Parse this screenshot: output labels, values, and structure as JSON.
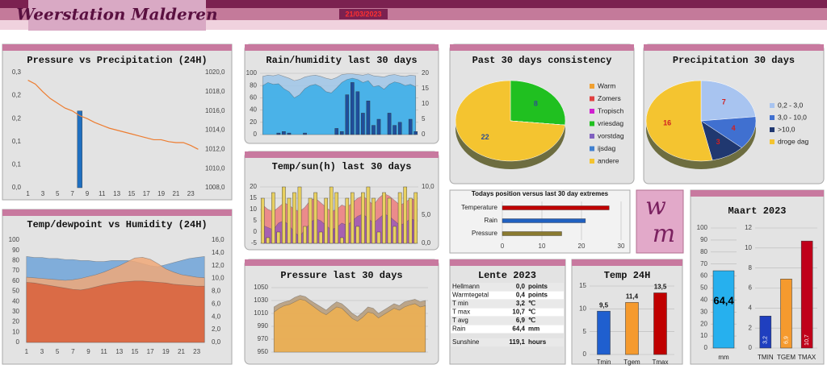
{
  "header": {
    "title": "Weerstation Malderen",
    "date": "21/03/2023"
  },
  "logo": [
    "w",
    "m"
  ],
  "table": {
    "title": "Lente 2023",
    "rows": [
      [
        "Hellmann",
        "0,0",
        "points"
      ],
      [
        "Warmtegetal",
        "0,4",
        "points"
      ],
      [
        "T min",
        "3,2",
        "℃"
      ],
      [
        "T max",
        "10,7",
        "℃"
      ],
      [
        "T avg",
        "6,9",
        "℃"
      ],
      [
        "Rain",
        "64,4",
        "mm"
      ],
      [
        "Sunshine",
        "119,1",
        "hours"
      ]
    ]
  },
  "chart_data": [
    {
      "type": "combo",
      "title": "Pressure vs Precipitation (24H)",
      "categories": [
        1,
        null,
        3,
        null,
        5,
        null,
        7,
        null,
        9,
        null,
        11,
        null,
        13,
        null,
        15,
        null,
        17,
        null,
        19,
        null,
        21,
        null,
        23,
        null
      ],
      "series": [
        {
          "type": "bar",
          "color": "#1f6fc0",
          "values": [
            0,
            0,
            0,
            0,
            0,
            0,
            0,
            0.2,
            0,
            0,
            0,
            0,
            0,
            0,
            0,
            0,
            0,
            0,
            0,
            0,
            0,
            0,
            0,
            0
          ]
        },
        {
          "type": "line",
          "color": "#ed7d31",
          "axis": "y2",
          "values": [
            1019.2,
            1018.8,
            1018,
            1017.3,
            1016.8,
            1016.3,
            1016,
            1015.5,
            1015.2,
            1014.8,
            1014.5,
            1014.2,
            1014,
            1013.8,
            1013.6,
            1013.4,
            1013.2,
            1013,
            1013,
            1012.8,
            1012.7,
            1012.7,
            1012.4,
            1012
          ]
        }
      ],
      "ylim": [
        0,
        0.3
      ],
      "yticks": [
        {
          "value": 0,
          "label": "0,0"
        },
        {
          "value": 0.06,
          "label": "0,1"
        },
        {
          "value": 0.12,
          "label": "0,1"
        },
        {
          "value": 0.18,
          "label": "0,2"
        },
        {
          "value": 0.24,
          "label": "0,2"
        },
        {
          "value": 0.3,
          "label": "0,3"
        }
      ],
      "y2lim": [
        1008,
        1020
      ],
      "y2ticks": [
        {
          "value": 1008,
          "label": "1008,0"
        },
        {
          "value": 1010,
          "label": "1010,0"
        },
        {
          "value": 1012,
          "label": "1012,0"
        },
        {
          "value": 1014,
          "label": "1014,0"
        },
        {
          "value": 1016,
          "label": "1016,0"
        },
        {
          "value": 1018,
          "label": "1018,0"
        },
        {
          "value": 1020,
          "label": "1020,0"
        }
      ],
      "grid": false
    },
    {
      "type": "combo",
      "title": "Temp/dewpoint vs Humidity (24H)",
      "categories": [
        1,
        null,
        3,
        null,
        5,
        null,
        7,
        null,
        9,
        null,
        11,
        null,
        13,
        null,
        15,
        null,
        17,
        null,
        19,
        null,
        21,
        null,
        23,
        null
      ],
      "series": [
        {
          "type": "area",
          "color": "#6fa3d8",
          "values": [
            84,
            83,
            83,
            82,
            82,
            81,
            81,
            80,
            80,
            79,
            79,
            80,
            80,
            80,
            79,
            77,
            75,
            74,
            76,
            78,
            80,
            82,
            83,
            84
          ]
        },
        {
          "type": "area",
          "color": "#f0a878",
          "axis": "y2",
          "values": [
            10.2,
            10.1,
            10,
            9.9,
            9.8,
            9.7,
            9.8,
            10,
            10.3,
            10.6,
            11,
            11.5,
            12,
            12.6,
            13.2,
            13.3,
            13,
            12.3,
            11.5,
            11,
            10.6,
            10.4,
            10.2,
            10.1
          ]
        },
        {
          "type": "area",
          "color": "#d9603b",
          "axis": "y2",
          "values": [
            9.4,
            9.3,
            9.1,
            8.9,
            8.7,
            8.5,
            8.3,
            8.2,
            8.4,
            8.7,
            9,
            9.2,
            9.4,
            9.5,
            9.6,
            9.6,
            9.5,
            9.4,
            9.3,
            9.1,
            9,
            8.9,
            8.8,
            8.8
          ]
        }
      ],
      "ylim": [
        0,
        100
      ],
      "yticks": [
        0,
        10,
        20,
        30,
        40,
        50,
        60,
        70,
        80,
        90,
        100
      ],
      "y2lim": [
        0,
        16
      ],
      "y2ticks": [
        {
          "value": 0,
          "label": "0,0"
        },
        {
          "value": 2,
          "label": "2,0"
        },
        {
          "value": 4,
          "label": "4,0"
        },
        {
          "value": 6,
          "label": "6,0"
        },
        {
          "value": 8,
          "label": "8,0"
        },
        {
          "value": 10,
          "label": "10,0"
        },
        {
          "value": 12,
          "label": "12,0"
        },
        {
          "value": 14,
          "label": "14,0"
        },
        {
          "value": 16,
          "label": "16,0"
        }
      ],
      "grid": false
    },
    {
      "type": "combo",
      "title": "Rain/humidity last 30 days",
      "series": [
        {
          "type": "area",
          "color": "#9fc5e8",
          "values": [
            95,
            97,
            96,
            98,
            95,
            92,
            88,
            90,
            94,
            96,
            97,
            95,
            92,
            90,
            93,
            98,
            99,
            99,
            98,
            97,
            99,
            96,
            95,
            94,
            97,
            98,
            96,
            95,
            97,
            96
          ]
        },
        {
          "type": "area",
          "color": "#3aaee8",
          "values": [
            80,
            85,
            82,
            83,
            75,
            70,
            60,
            65,
            75,
            80,
            82,
            78,
            70,
            68,
            76,
            85,
            90,
            92,
            90,
            85,
            88,
            78,
            80,
            74,
            82,
            86,
            84,
            80,
            82,
            78
          ]
        },
        {
          "type": "bar",
          "color": "#1f4e9c",
          "axis": "y2",
          "values": [
            0,
            0,
            0,
            0.5,
            1,
            0.5,
            0,
            0,
            0.5,
            0,
            0,
            0,
            0,
            0,
            2,
            1,
            13,
            17,
            14,
            7,
            11,
            3,
            5,
            0,
            7,
            3,
            4,
            0,
            5,
            1
          ]
        }
      ],
      "ylim": [
        0,
        100
      ],
      "yticks": [
        0,
        20,
        40,
        60,
        80,
        100
      ],
      "y2lim": [
        0,
        20
      ],
      "y2ticks": [
        0,
        5,
        10,
        15,
        20
      ],
      "grid": true
    },
    {
      "type": "combo",
      "title": "Temp/sun(h) last 30 days",
      "series": [
        {
          "type": "area",
          "color": "#ec7b7b",
          "values": [
            12,
            10,
            9,
            11,
            13,
            12,
            10,
            9,
            11,
            14,
            15,
            13,
            11,
            9,
            10,
            12,
            11,
            13,
            15,
            16,
            14,
            12,
            15,
            17,
            16,
            14,
            12,
            13,
            15,
            14
          ]
        },
        {
          "type": "area",
          "color": "#9b59b6",
          "values": [
            3,
            2,
            1,
            4,
            5,
            3,
            0,
            -2,
            1,
            4,
            6,
            5,
            3,
            1,
            2,
            4,
            3,
            5,
            7,
            8,
            6,
            4,
            6,
            8,
            7,
            5,
            3,
            4,
            6,
            5
          ]
        },
        {
          "type": "bar",
          "color": "#e8d060",
          "axis": "y2",
          "values": [
            8,
            1,
            9,
            2,
            10,
            8,
            9,
            10,
            3,
            8,
            9,
            2,
            8,
            10,
            9,
            1,
            8,
            9,
            3,
            9,
            10,
            8,
            2,
            9,
            8,
            3,
            9,
            10,
            8,
            9
          ]
        }
      ],
      "ylim": [
        -5,
        20
      ],
      "yticks": [
        -5,
        0,
        5,
        10,
        15,
        20
      ],
      "y2lim": [
        0,
        10
      ],
      "y2ticks": [
        {
          "value": 0,
          "label": "0,0"
        },
        {
          "value": 5,
          "label": "5,0"
        },
        {
          "value": 10,
          "label": "10,0"
        }
      ],
      "grid": true
    },
    {
      "type": "combo",
      "title": "Pressure last 30 days",
      "series": [
        {
          "type": "area",
          "color": "#b59a78",
          "values": [
            1020,
            1025,
            1028,
            1030,
            1035,
            1038,
            1036,
            1030,
            1025,
            1020,
            1015,
            1022,
            1028,
            1025,
            1018,
            1010,
            1005,
            1012,
            1020,
            1018,
            1010,
            1015,
            1020,
            1025,
            1022,
            1028,
            1030,
            1032,
            1028,
            1030
          ]
        },
        {
          "type": "area",
          "color": "#f0b050",
          "values": [
            1012,
            1018,
            1022,
            1024,
            1028,
            1032,
            1030,
            1024,
            1018,
            1012,
            1008,
            1014,
            1020,
            1018,
            1010,
            1002,
            998,
            1004,
            1012,
            1010,
            1003,
            1008,
            1013,
            1018,
            1015,
            1020,
            1023,
            1025,
            1020,
            1022
          ]
        }
      ],
      "ylim": [
        950,
        1050
      ],
      "yticks": [
        950,
        970,
        990,
        1010,
        1030,
        1050
      ],
      "grid": true
    },
    {
      "type": "pie",
      "title": "Past 30 days consistency",
      "categories": [
        "Warm",
        "Zomers",
        "Tropisch",
        "vriesdag",
        "vorstdag",
        "ijsdag",
        "andere"
      ],
      "values": [
        0,
        0,
        0,
        8,
        0,
        0,
        22
      ],
      "colors": [
        "#f0a030",
        "#e04040",
        "#d020d0",
        "#20c020",
        "#8060c0",
        "#4080d0",
        "#f4c430"
      ],
      "label_color": "#2f4f8f"
    },
    {
      "type": "pie",
      "title": "Precipitation 30 days",
      "categories": [
        "0,2 - 3,0",
        "3,0 - 10,0",
        ">10,0",
        "droge dag"
      ],
      "values": [
        7,
        4,
        3,
        16
      ],
      "colors": [
        "#a8c4f0",
        "#4070d0",
        "#203870",
        "#f4c430"
      ],
      "label_color": "#d02020"
    },
    {
      "type": "hbar",
      "title": "Todays position versus last 30 day extremes",
      "categories": [
        "Temperature",
        "Rain",
        "Pressure"
      ],
      "values": [
        27,
        21,
        15
      ],
      "colors": [
        "#c00000",
        "#2060c0",
        "#8a7a30"
      ],
      "xlim": [
        0,
        30
      ],
      "xticks": [
        0,
        10,
        20,
        30
      ],
      "grid": true
    },
    {
      "type": "bar",
      "title": "Temp 24H",
      "categories": [
        "Tmin",
        "Tgem",
        "Tmax"
      ],
      "values": [
        9.5,
        11.4,
        13.5
      ],
      "value_labels": [
        "9,5",
        "11,4",
        "13,5"
      ],
      "colors": [
        "#1f5fcf",
        "#f59a2e",
        "#c00000"
      ],
      "ylim": [
        0,
        15
      ],
      "yticks": [
        0,
        5,
        10,
        15
      ],
      "grid": true
    },
    {
      "type": "bar",
      "title": "Maart 2023",
      "categories": [
        "mm"
      ],
      "values": [
        64.4
      ],
      "value_labels": [
        "64,4"
      ],
      "colors": [
        "#26b0ee"
      ],
      "ylim": [
        0,
        100
      ],
      "yticks": [
        0,
        10,
        20,
        30,
        40,
        50,
        60,
        70,
        80,
        90,
        100
      ],
      "grid": true
    },
    {
      "type": "bar",
      "categories": [
        "TMIN",
        "TGEM",
        "TMAX"
      ],
      "values": [
        3.2,
        6.9,
        10.7
      ],
      "value_labels": [
        "3,2",
        "6,9",
        "10,7"
      ],
      "colors": [
        "#1f3fbf",
        "#f59a2e",
        "#c0001a"
      ],
      "ylim": [
        0,
        12
      ],
      "yticks": [
        0,
        2,
        4,
        6,
        8,
        10,
        12
      ],
      "grid": true
    }
  ]
}
